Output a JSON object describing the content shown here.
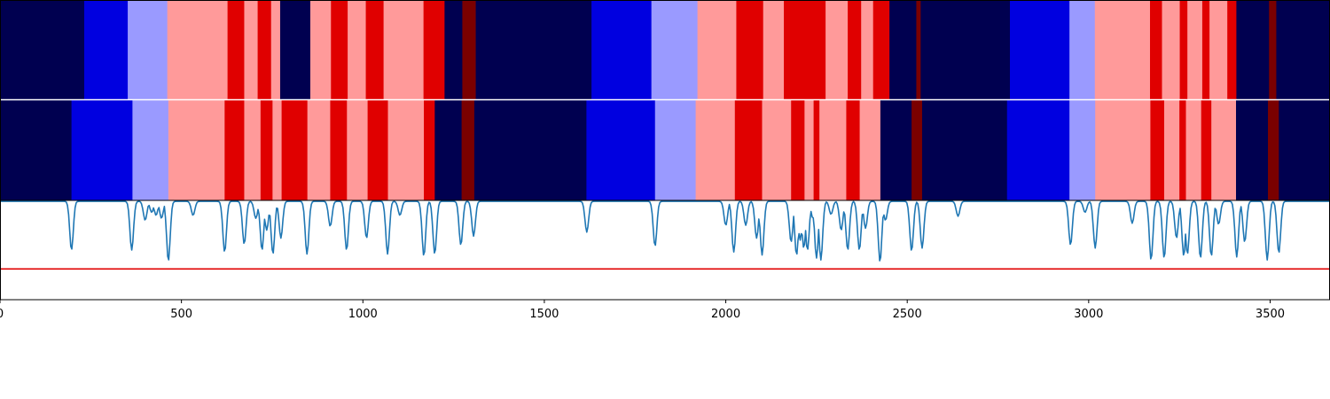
{
  "chart_data": [
    {
      "type": "heatmap",
      "name": "segmentation-row-top",
      "colors": {
        "navy": "#000050",
        "blue": "#0000e0",
        "lavender": "#9a9aff",
        "pink": "#ff9a9a",
        "red": "#e00000",
        "darkred": "#7a0000"
      },
      "segments": [
        {
          "start": 0,
          "end": 232,
          "color": "navy"
        },
        {
          "start": 232,
          "end": 352,
          "color": "blue"
        },
        {
          "start": 352,
          "end": 461,
          "color": "lavender"
        },
        {
          "start": 461,
          "end": 627,
          "color": "pink"
        },
        {
          "start": 627,
          "end": 673,
          "color": "red"
        },
        {
          "start": 673,
          "end": 710,
          "color": "pink"
        },
        {
          "start": 710,
          "end": 747,
          "color": "red"
        },
        {
          "start": 747,
          "end": 772,
          "color": "pink"
        },
        {
          "start": 772,
          "end": 855,
          "color": "navy"
        },
        {
          "start": 855,
          "end": 912,
          "color": "pink"
        },
        {
          "start": 912,
          "end": 958,
          "color": "red"
        },
        {
          "start": 958,
          "end": 1008,
          "color": "pink"
        },
        {
          "start": 1008,
          "end": 1057,
          "color": "red"
        },
        {
          "start": 1057,
          "end": 1167,
          "color": "pink"
        },
        {
          "start": 1167,
          "end": 1225,
          "color": "red"
        },
        {
          "start": 1225,
          "end": 1274,
          "color": "navy"
        },
        {
          "start": 1274,
          "end": 1311,
          "color": "darkred"
        },
        {
          "start": 1311,
          "end": 1630,
          "color": "navy"
        },
        {
          "start": 1630,
          "end": 1795,
          "color": "blue"
        },
        {
          "start": 1795,
          "end": 1922,
          "color": "lavender"
        },
        {
          "start": 1922,
          "end": 2029,
          "color": "pink"
        },
        {
          "start": 2029,
          "end": 2103,
          "color": "red"
        },
        {
          "start": 2103,
          "end": 2160,
          "color": "pink"
        },
        {
          "start": 2160,
          "end": 2275,
          "color": "red"
        },
        {
          "start": 2275,
          "end": 2336,
          "color": "pink"
        },
        {
          "start": 2336,
          "end": 2373,
          "color": "red"
        },
        {
          "start": 2373,
          "end": 2406,
          "color": "pink"
        },
        {
          "start": 2406,
          "end": 2451,
          "color": "red"
        },
        {
          "start": 2451,
          "end": 2525,
          "color": "navy"
        },
        {
          "start": 2525,
          "end": 2537,
          "color": "darkred"
        },
        {
          "start": 2537,
          "end": 2783,
          "color": "navy"
        },
        {
          "start": 2783,
          "end": 2947,
          "color": "blue"
        },
        {
          "start": 2947,
          "end": 3017,
          "color": "lavender"
        },
        {
          "start": 3017,
          "end": 3169,
          "color": "pink"
        },
        {
          "start": 3169,
          "end": 3202,
          "color": "red"
        },
        {
          "start": 3202,
          "end": 3251,
          "color": "pink"
        },
        {
          "start": 3251,
          "end": 3272,
          "color": "red"
        },
        {
          "start": 3272,
          "end": 3313,
          "color": "pink"
        },
        {
          "start": 3313,
          "end": 3333,
          "color": "red"
        },
        {
          "start": 3333,
          "end": 3382,
          "color": "pink"
        },
        {
          "start": 3382,
          "end": 3407,
          "color": "red"
        },
        {
          "start": 3407,
          "end": 3497,
          "color": "navy"
        },
        {
          "start": 3497,
          "end": 3517,
          "color": "darkred"
        },
        {
          "start": 3517,
          "end": 3665,
          "color": "navy"
        }
      ]
    },
    {
      "type": "heatmap",
      "name": "segmentation-row-bottom",
      "segments": [
        {
          "start": 0,
          "end": 197,
          "color": "navy"
        },
        {
          "start": 197,
          "end": 365,
          "color": "blue"
        },
        {
          "start": 365,
          "end": 464,
          "color": "lavender"
        },
        {
          "start": 464,
          "end": 619,
          "color": "pink"
        },
        {
          "start": 619,
          "end": 673,
          "color": "red"
        },
        {
          "start": 673,
          "end": 718,
          "color": "pink"
        },
        {
          "start": 718,
          "end": 751,
          "color": "red"
        },
        {
          "start": 751,
          "end": 776,
          "color": "pink"
        },
        {
          "start": 776,
          "end": 847,
          "color": "red"
        },
        {
          "start": 847,
          "end": 910,
          "color": "pink"
        },
        {
          "start": 910,
          "end": 956,
          "color": "red"
        },
        {
          "start": 956,
          "end": 1013,
          "color": "pink"
        },
        {
          "start": 1013,
          "end": 1069,
          "color": "red"
        },
        {
          "start": 1069,
          "end": 1168,
          "color": "pink"
        },
        {
          "start": 1168,
          "end": 1198,
          "color": "red"
        },
        {
          "start": 1198,
          "end": 1272,
          "color": "navy"
        },
        {
          "start": 1272,
          "end": 1307,
          "color": "darkred"
        },
        {
          "start": 1307,
          "end": 1616,
          "color": "navy"
        },
        {
          "start": 1616,
          "end": 1805,
          "color": "blue"
        },
        {
          "start": 1805,
          "end": 1917,
          "color": "lavender"
        },
        {
          "start": 1917,
          "end": 2025,
          "color": "pink"
        },
        {
          "start": 2025,
          "end": 2100,
          "color": "red"
        },
        {
          "start": 2100,
          "end": 2180,
          "color": "pink"
        },
        {
          "start": 2180,
          "end": 2217,
          "color": "red"
        },
        {
          "start": 2217,
          "end": 2242,
          "color": "pink"
        },
        {
          "start": 2242,
          "end": 2258,
          "color": "red"
        },
        {
          "start": 2258,
          "end": 2332,
          "color": "pink"
        },
        {
          "start": 2332,
          "end": 2369,
          "color": "red"
        },
        {
          "start": 2369,
          "end": 2426,
          "color": "pink"
        },
        {
          "start": 2426,
          "end": 2512,
          "color": "navy"
        },
        {
          "start": 2512,
          "end": 2541,
          "color": "darkred"
        },
        {
          "start": 2541,
          "end": 2775,
          "color": "navy"
        },
        {
          "start": 2775,
          "end": 2947,
          "color": "blue"
        },
        {
          "start": 2947,
          "end": 3018,
          "color": "lavender"
        },
        {
          "start": 3018,
          "end": 3170,
          "color": "pink"
        },
        {
          "start": 3170,
          "end": 3208,
          "color": "red"
        },
        {
          "start": 3208,
          "end": 3250,
          "color": "pink"
        },
        {
          "start": 3250,
          "end": 3268,
          "color": "red"
        },
        {
          "start": 3268,
          "end": 3310,
          "color": "pink"
        },
        {
          "start": 3310,
          "end": 3338,
          "color": "red"
        },
        {
          "start": 3338,
          "end": 3406,
          "color": "pink"
        },
        {
          "start": 3406,
          "end": 3494,
          "color": "navy"
        },
        {
          "start": 3494,
          "end": 3524,
          "color": "darkred"
        },
        {
          "start": 3524,
          "end": 3665,
          "color": "navy"
        }
      ]
    },
    {
      "type": "line",
      "name": "score-trace",
      "colors": {
        "line": "#1f77b4",
        "threshold": "#e00000"
      },
      "xlim": [
        0,
        3665
      ],
      "ylim": [
        0,
        1
      ],
      "baseline": 0.99,
      "threshold": 0.31,
      "dips": [
        [
          197,
          0.5
        ],
        [
          363,
          0.5
        ],
        [
          400,
          0.8
        ],
        [
          418,
          0.88
        ],
        [
          430,
          0.85
        ],
        [
          445,
          0.82
        ],
        [
          464,
          0.39
        ],
        [
          532,
          0.85
        ],
        [
          619,
          0.48
        ],
        [
          673,
          0.56
        ],
        [
          705,
          0.82
        ],
        [
          722,
          0.5
        ],
        [
          735,
          0.7
        ],
        [
          752,
          0.46
        ],
        [
          774,
          0.62
        ],
        [
          846,
          0.46
        ],
        [
          910,
          0.74
        ],
        [
          955,
          0.5
        ],
        [
          1010,
          0.62
        ],
        [
          1068,
          0.46
        ],
        [
          1102,
          0.85
        ],
        [
          1168,
          0.44
        ],
        [
          1198,
          0.46
        ],
        [
          1270,
          0.55
        ],
        [
          1305,
          0.64
        ],
        [
          1617,
          0.68
        ],
        [
          1805,
          0.54
        ],
        [
          2000,
          0.75
        ],
        [
          2022,
          0.48
        ],
        [
          2055,
          0.75
        ],
        [
          2085,
          0.62
        ],
        [
          2100,
          0.45
        ],
        [
          2180,
          0.58
        ],
        [
          2195,
          0.45
        ],
        [
          2205,
          0.6
        ],
        [
          2215,
          0.52
        ],
        [
          2225,
          0.5
        ],
        [
          2240,
          0.82
        ],
        [
          2250,
          0.42
        ],
        [
          2262,
          0.4
        ],
        [
          2290,
          0.86
        ],
        [
          2318,
          0.7
        ],
        [
          2336,
          0.5
        ],
        [
          2368,
          0.5
        ],
        [
          2385,
          0.72
        ],
        [
          2425,
          0.38
        ],
        [
          2440,
          0.8
        ],
        [
          2512,
          0.49
        ],
        [
          2541,
          0.52
        ],
        [
          2640,
          0.84
        ],
        [
          2950,
          0.55
        ],
        [
          2990,
          0.88
        ],
        [
          3018,
          0.52
        ],
        [
          3120,
          0.77
        ],
        [
          3172,
          0.4
        ],
        [
          3208,
          0.42
        ],
        [
          3242,
          0.62
        ],
        [
          3262,
          0.44
        ],
        [
          3272,
          0.46
        ],
        [
          3308,
          0.42
        ],
        [
          3338,
          0.44
        ],
        [
          3358,
          0.76
        ],
        [
          3408,
          0.43
        ],
        [
          3430,
          0.58
        ],
        [
          3492,
          0.4
        ],
        [
          3524,
          0.47
        ]
      ]
    }
  ],
  "axis": {
    "ticks": [
      {
        "value": 0,
        "label": "0"
      },
      {
        "value": 500,
        "label": "500"
      },
      {
        "value": 1000,
        "label": "1000"
      },
      {
        "value": 1500,
        "label": "1500"
      },
      {
        "value": 2000,
        "label": "2000"
      },
      {
        "value": 2500,
        "label": "2500"
      },
      {
        "value": 3000,
        "label": "3000"
      },
      {
        "value": 3500,
        "label": "3500"
      }
    ]
  }
}
